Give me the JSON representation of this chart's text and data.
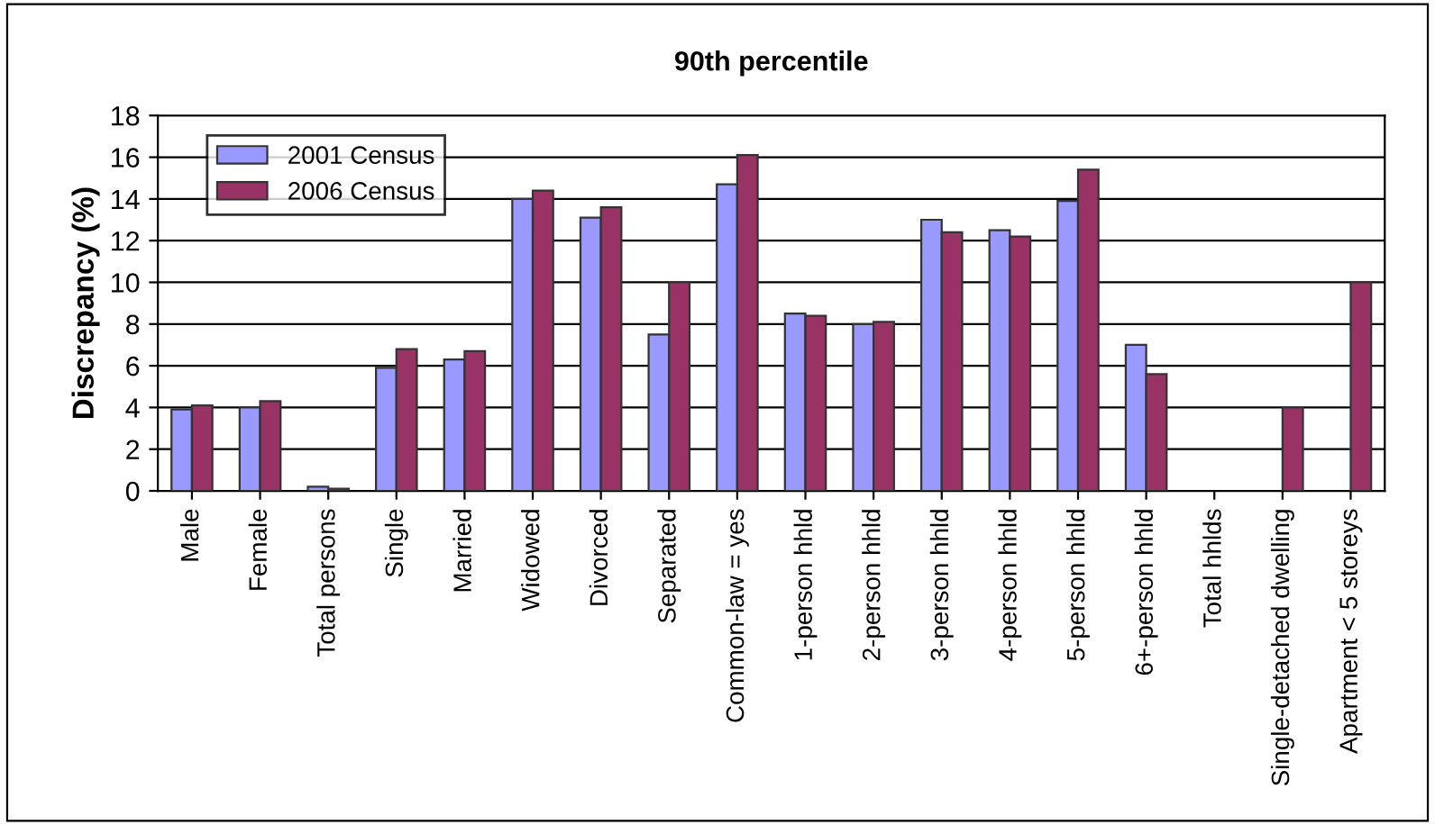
{
  "chart_data": {
    "type": "bar",
    "title": "90th percentile",
    "ylabel": "Discrepancy (%)",
    "categories": [
      "Male",
      "Female",
      "Total persons",
      "Single",
      "Married",
      "Widowed",
      "Divorced",
      "Separated",
      "Common-law = yes",
      "1-person hhld",
      "2-person hhld",
      "3-person hhld",
      "4-person hhld",
      "5-person hhld",
      "6+-person hhld",
      "Total hhlds",
      "Single-detached dwelling",
      "Apartment < 5 storeys"
    ],
    "series": [
      {
        "name": "2001 Census",
        "color": "#9999ff",
        "values": [
          3.9,
          4.0,
          0.2,
          5.9,
          6.3,
          14.0,
          13.1,
          7.5,
          14.7,
          8.5,
          8.0,
          13.0,
          12.5,
          13.9,
          7.0,
          null,
          null,
          null
        ]
      },
      {
        "name": "2006 Census",
        "color": "#993366",
        "values": [
          4.1,
          4.3,
          0.1,
          6.8,
          6.7,
          14.4,
          13.6,
          10.0,
          16.1,
          8.4,
          8.1,
          12.4,
          12.2,
          15.4,
          5.6,
          null,
          4.0,
          10.0
        ]
      }
    ],
    "ylim": [
      0,
      18
    ],
    "yticks": [
      0,
      2,
      4,
      6,
      8,
      10,
      12,
      14,
      16,
      18
    ],
    "grid": "y",
    "legend": "top left"
  }
}
